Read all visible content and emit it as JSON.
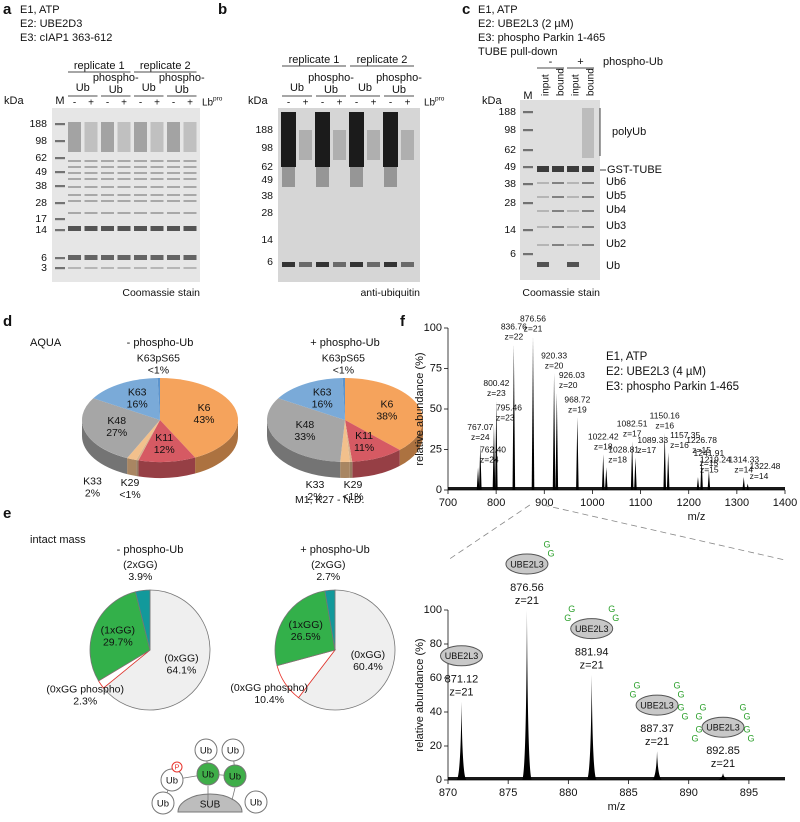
{
  "panel_a": {
    "letter": "a",
    "conditions": [
      "E1, ATP",
      "E2: UBE2D3",
      "E3: cIAP1 363-612"
    ],
    "replicates": [
      "replicate 1",
      "replicate 2"
    ],
    "ub": "Ub",
    "phospho": "phospho-",
    "kda": "kDa",
    "marker": "M",
    "minus": "-",
    "plus": "+",
    "lb": "Lb",
    "lb_sup": "pro",
    "markers": [
      188,
      98,
      62,
      49,
      38,
      28,
      17,
      14,
      6,
      3
    ],
    "stain": "Coomassie stain"
  },
  "panel_b": {
    "letter": "b",
    "markers": [
      188,
      98,
      62,
      49,
      38,
      28,
      14,
      6
    ],
    "stain": "anti-ubiquitin"
  },
  "panel_c": {
    "letter": "c",
    "conditions": [
      "E1, ATP",
      "E2: UBE2L3 (2 µM)",
      "E3: phospho Parkin 1-465",
      "TUBE pull-down"
    ],
    "phospho_ub": "phospho-Ub",
    "lanes": [
      "input",
      "bound",
      "input",
      "bound"
    ],
    "markers": [
      188,
      98,
      62,
      49,
      38,
      28,
      14,
      6
    ],
    "bands": [
      "polyUb",
      "GST-TUBE",
      "Ub6",
      "Ub5",
      "Ub4",
      "Ub3",
      "Ub2",
      "Ub"
    ],
    "stain": "Coomassie stain"
  },
  "panel_d": {
    "letter": "d",
    "label": "AQUA",
    "note": "M1, K27 - N.D."
  },
  "panel_e": {
    "letter": "e",
    "label": "intact mass"
  },
  "panel_f": {
    "letter": "f"
  },
  "diagram": {
    "ub": "Ub",
    "sub": "SUB",
    "phospho": "P"
  },
  "chart_data": [
    {
      "type": "pie",
      "3d": true,
      "title": "- phospho-Ub",
      "categories": [
        "K6",
        "K11",
        "K29",
        "K33",
        "K48",
        "K63",
        "K63pS65"
      ],
      "values": [
        43,
        12,
        0.5,
        2,
        27,
        16,
        0.5
      ],
      "value_labels": [
        "43%",
        "12%",
        "<1%",
        "2%",
        "27%",
        "16%",
        "<1%"
      ],
      "colors": [
        "#f5a35c",
        "#d65a63",
        "#d9b38c",
        "#f2c08c",
        "#a6a6a6",
        "#7aaad8",
        "#5b93cc"
      ]
    },
    {
      "type": "pie",
      "3d": true,
      "title": "+ phospho-Ub",
      "categories": [
        "K6",
        "K11",
        "K29",
        "K33",
        "K48",
        "K63",
        "K63pS65"
      ],
      "values": [
        38,
        11,
        0.5,
        2,
        33,
        16,
        0.5
      ],
      "value_labels": [
        "38%",
        "11%",
        "<1%",
        "2%",
        "33%",
        "16%",
        "<1%"
      ],
      "colors": [
        "#f5a35c",
        "#d65a63",
        "#d9b38c",
        "#f2c08c",
        "#a6a6a6",
        "#7aaad8",
        "#5b93cc"
      ]
    },
    {
      "type": "pie",
      "3d": false,
      "title": "- phospho-Ub",
      "categories": [
        "(0xGG)",
        "(0xGG phospho)",
        "(1xGG)",
        "(2xGG)"
      ],
      "values": [
        64.1,
        2.3,
        29.7,
        3.9
      ],
      "value_labels": [
        "64.1%",
        "2.3%",
        "29.7%",
        "3.9%"
      ],
      "colors": [
        "#efefef",
        "#ffffff",
        "#33b04a",
        "#12999b"
      ],
      "edgecolors": [
        "#777777",
        "#e8322a",
        "#777777",
        "#777777"
      ]
    },
    {
      "type": "pie",
      "3d": false,
      "title": "+ phospho-Ub",
      "categories": [
        "(0xGG)",
        "(0xGG phospho)",
        "(1xGG)",
        "(2xGG)"
      ],
      "values": [
        60.4,
        10.4,
        26.5,
        2.7
      ],
      "value_labels": [
        "60.4%",
        "10.4%",
        "26.5%",
        "2.7%"
      ],
      "colors": [
        "#efefef",
        "#ffffff",
        "#33b04a",
        "#12999b"
      ],
      "edgecolors": [
        "#777777",
        "#e8322a",
        "#777777",
        "#777777"
      ]
    },
    {
      "type": "spectrum",
      "xlabel": "m/z",
      "ylabel": "relative abundance (%)",
      "annotations": [
        "E1, ATP",
        "E2: UBE2L3 (4 µM)",
        "E3: phospho Parkin 1-465"
      ],
      "xlim": [
        700,
        1400
      ],
      "xticks": [
        700,
        800,
        900,
        1000,
        1100,
        1200,
        1300,
        1400
      ],
      "ylim": [
        0,
        100
      ],
      "yticks": [
        0,
        25,
        50,
        75,
        100
      ],
      "color": "#000000",
      "x": [
        762.4,
        767.07,
        795.46,
        800.42,
        836.76,
        876.56,
        920.33,
        926.03,
        968.72,
        1022.42,
        1028.81,
        1082.51,
        1089.33,
        1150.16,
        1157.35,
        1219.24,
        1226.78,
        1241.91,
        1314.33,
        1322.48
      ],
      "x_labels": [
        "762.40",
        "767.07",
        "795.46",
        "800.42",
        "836.76",
        "876.56",
        "920.33",
        "926.03",
        "968.72",
        "1022.42",
        "1028.81",
        "1082.51",
        "1089.33",
        "1150.16",
        "1157.35",
        "1219.24",
        "1226.78",
        "1241.91",
        "1314.33",
        "1322.48"
      ],
      "values": [
        14,
        28,
        40,
        55,
        90,
        95,
        72,
        60,
        45,
        22,
        14,
        30,
        20,
        35,
        23,
        8,
        20,
        12,
        8,
        4
      ],
      "charge_labels": [
        "z=24",
        "z=24",
        "z=23",
        "z=23",
        "z=22",
        "z=21",
        "z=20",
        "z=20",
        "z=19",
        "z=18",
        "z=18",
        "z=17",
        "z=17",
        "z=16",
        "z=16",
        "z=15",
        "z=15",
        "z=15",
        "z=14",
        "z=14"
      ]
    },
    {
      "type": "spectrum",
      "xlabel": "m/z",
      "ylabel": "relative abundance (%)",
      "xlim": [
        870,
        898
      ],
      "xticks": [
        870,
        875,
        880,
        885,
        890,
        895
      ],
      "ylim": [
        0,
        100
      ],
      "yticks": [
        0,
        20,
        40,
        60,
        80,
        100
      ],
      "color": "#000000",
      "x": [
        871.12,
        876.56,
        881.94,
        887.37,
        892.85
      ],
      "values": [
        46,
        100,
        62,
        17,
        4
      ],
      "charge_labels": [
        "z=21",
        "z=21",
        "z=21",
        "z=21",
        "z=21"
      ],
      "protein_label": "UBE2L3",
      "glycine_label": "G",
      "glycine_color": "#2ca02c",
      "gg_counts": [
        0,
        1,
        2,
        3,
        4
      ]
    }
  ]
}
